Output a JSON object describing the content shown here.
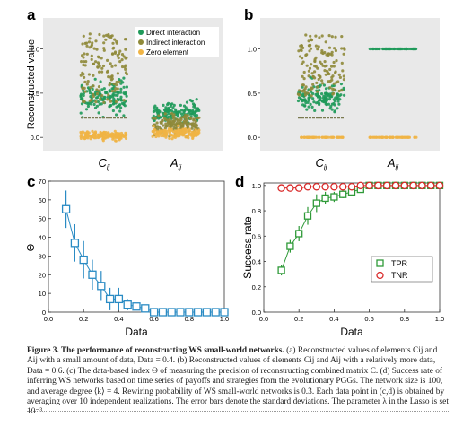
{
  "colors": {
    "direct": "#1f9a5a",
    "indirect": "#8f8a3a",
    "zero": "#f0b445",
    "theta": "#2a8bc4",
    "tpr": "#2f9a38",
    "tnr": "#d92a2a",
    "panel_bg": "#e9e9e9"
  },
  "chart_data": [
    {
      "panel": "a",
      "type": "scatter",
      "ylabel": "Reconstructed value",
      "categories": [
        "C_ij",
        "A_ij"
      ],
      "yticks": [
        "0.0",
        "0.5",
        "1.0"
      ],
      "ylim": [
        -0.15,
        1.35
      ],
      "legend": [
        "Direct interaction",
        "Indirect interaction",
        "Zero element"
      ],
      "legend_position": "top-right",
      "data_amount": 0.4,
      "series": [
        {
          "name": "Direct interaction",
          "category": "C_ij",
          "center": 0.45,
          "spread": 0.28
        },
        {
          "name": "Indirect interaction",
          "category": "C_ij",
          "center": 0.55,
          "spread": 0.6
        },
        {
          "name": "Zero element",
          "category": "C_ij",
          "center": 0.02,
          "spread": 0.08
        },
        {
          "name": "Direct interaction",
          "category": "A_ij",
          "center": 0.28,
          "spread": 0.2
        },
        {
          "name": "Indirect interaction",
          "category": "A_ij",
          "center": 0.15,
          "spread": 0.18
        },
        {
          "name": "Zero element",
          "category": "A_ij",
          "center": 0.05,
          "spread": 0.1
        }
      ]
    },
    {
      "panel": "b",
      "type": "scatter",
      "categories": [
        "C_ij",
        "A_ij"
      ],
      "yticks": [
        "0.0",
        "0.5",
        "1.0"
      ],
      "ylim": [
        -0.15,
        1.35
      ],
      "data_amount": 0.6,
      "series": [
        {
          "name": "Direct interaction",
          "category": "C_ij",
          "center": 0.45,
          "spread": 0.25
        },
        {
          "name": "Indirect interaction",
          "category": "C_ij",
          "center": 0.6,
          "spread": 0.55
        },
        {
          "name": "Zero element",
          "category": "C_ij",
          "center": 0.0,
          "spread": 0.0
        },
        {
          "name": "Direct interaction",
          "category": "A_ij",
          "center": 1.0,
          "spread": 0.0
        },
        {
          "name": "Zero element",
          "category": "A_ij",
          "center": 0.0,
          "spread": 0.0
        }
      ]
    },
    {
      "panel": "c",
      "type": "line",
      "xlabel": "Data",
      "ylabel": "Θ",
      "xlim": [
        0.0,
        1.0
      ],
      "ylim": [
        0,
        70
      ],
      "xticks": [
        "0.0",
        "0.2",
        "0.4",
        "0.6",
        "0.8",
        "1.0"
      ],
      "yticks": [
        "0",
        "10",
        "20",
        "30",
        "40",
        "50",
        "60",
        "70"
      ],
      "x": [
        0.1,
        0.15,
        0.2,
        0.25,
        0.3,
        0.35,
        0.4,
        0.45,
        0.5,
        0.55,
        0.6,
        0.65,
        0.7,
        0.75,
        0.8,
        0.85,
        0.9,
        0.95,
        1.0
      ],
      "y": [
        55,
        37,
        28,
        20,
        14,
        7,
        7,
        4,
        3,
        2,
        0,
        0,
        0,
        0,
        0,
        0,
        0,
        0,
        0
      ],
      "err": [
        10,
        10,
        10,
        8,
        8,
        6,
        6,
        3,
        2,
        2,
        1,
        0,
        0,
        0,
        0,
        0,
        0,
        0,
        0
      ]
    },
    {
      "panel": "d",
      "type": "line",
      "xlabel": "Data",
      "ylabel": "Success rate",
      "xlim": [
        0.0,
        1.0
      ],
      "ylim": [
        0.0,
        1.02
      ],
      "xticks": [
        "0.0",
        "0.2",
        "0.4",
        "0.6",
        "0.8",
        "1.0"
      ],
      "yticks": [
        "0.0",
        "0.2",
        "0.4",
        "0.6",
        "0.8",
        "1.0"
      ],
      "legend_position": "center-right",
      "series": [
        {
          "name": "TPR",
          "x": [
            0.1,
            0.15,
            0.2,
            0.25,
            0.3,
            0.35,
            0.4,
            0.45,
            0.5,
            0.55,
            0.6,
            0.65,
            0.7,
            0.75,
            0.8,
            0.85,
            0.9,
            0.95,
            1.0
          ],
          "y": [
            0.33,
            0.52,
            0.62,
            0.76,
            0.86,
            0.9,
            0.91,
            0.93,
            0.95,
            0.97,
            1.0,
            1.0,
            1.0,
            1.0,
            1.0,
            1.0,
            1.0,
            1.0,
            1.0
          ],
          "err": [
            0.04,
            0.05,
            0.06,
            0.07,
            0.07,
            0.05,
            0.04,
            0.03,
            0.03,
            0.02,
            0.01,
            0.0,
            0.0,
            0.0,
            0.0,
            0.0,
            0.0,
            0.0,
            0.0
          ]
        },
        {
          "name": "TNR",
          "x": [
            0.1,
            0.15,
            0.2,
            0.25,
            0.3,
            0.35,
            0.4,
            0.45,
            0.5,
            0.55,
            0.6,
            0.65,
            0.7,
            0.75,
            0.8,
            0.85,
            0.9,
            0.95,
            1.0
          ],
          "y": [
            0.98,
            0.98,
            0.98,
            0.99,
            0.99,
            0.99,
            0.99,
            0.99,
            0.99,
            1.0,
            1.0,
            1.0,
            1.0,
            1.0,
            1.0,
            1.0,
            1.0,
            1.0,
            1.0
          ],
          "err": [
            0.01,
            0.01,
            0.01,
            0.01,
            0.01,
            0.0,
            0.0,
            0.0,
            0.0,
            0.0,
            0.0,
            0.0,
            0.0,
            0.0,
            0.0,
            0.0,
            0.0,
            0.0,
            0.0
          ]
        }
      ]
    }
  ],
  "panels": {
    "a": {
      "letter": "a",
      "cat1": "C",
      "cat1_sub": "ij",
      "cat2": "A",
      "cat2_sub": "ij"
    },
    "b": {
      "letter": "b",
      "cat1": "C",
      "cat1_sub": "ij",
      "cat2": "A",
      "cat2_sub": "ij"
    },
    "c": {
      "letter": "c"
    },
    "d": {
      "letter": "d"
    }
  },
  "caption": {
    "title": "Figure 3.  The performance of reconstructing WS small-world networks.",
    "body": " (a) Reconstructed values of elements Cij and Aij with a small amount of data, Data = 0.4. (b) Reconstructed values of elements Cij and Aij with a relatively more data, Data = 0.6. (c) The data-based index Θ of measuring the precision of reconstructing combined matrix C. (d) Success rate of inferring WS networks based on time series of payoffs and strategies from the evolutionary PGGs. The network size is 100, and average degree ⟨k⟩ = 4. Rewiring probability of WS small-world networks is 0.3. Each data point in (c,d) is obtained by averaging over 10 independent realizations. The error bars denote the standard deviations. The parameter λ in the Lasso is set 10⁻³."
  }
}
